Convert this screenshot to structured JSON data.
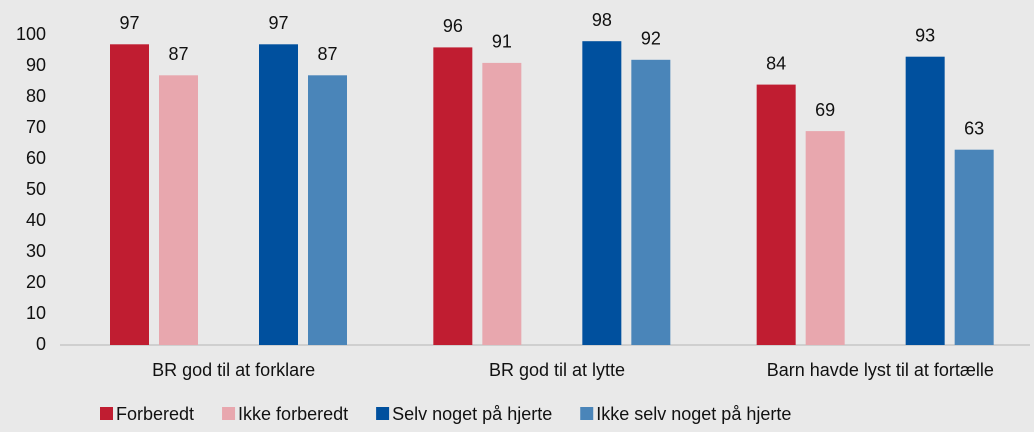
{
  "chart_data": {
    "type": "bar",
    "categories": [
      "BR god til at forklare",
      "BR god til at lytte",
      "Barn havde lyst til at fortælle"
    ],
    "series": [
      {
        "name": "Forberedt",
        "color": "#c01d31",
        "values": [
          97,
          96,
          84
        ]
      },
      {
        "name": "Ikke forberedt",
        "color": "#e8a7ae",
        "values": [
          87,
          91,
          69
        ]
      },
      {
        "name": "Selv noget på hjerte",
        "color": "#00509e",
        "values": [
          97,
          98,
          93
        ]
      },
      {
        "name": "Ikke selv noget på hjerte",
        "color": "#4a85b9",
        "values": [
          87,
          92,
          63
        ]
      }
    ],
    "ylim": [
      0,
      100
    ],
    "yticks": [
      0,
      10,
      20,
      30,
      40,
      50,
      60,
      70,
      80,
      90,
      100
    ],
    "legend": "bottom",
    "grid": false
  }
}
